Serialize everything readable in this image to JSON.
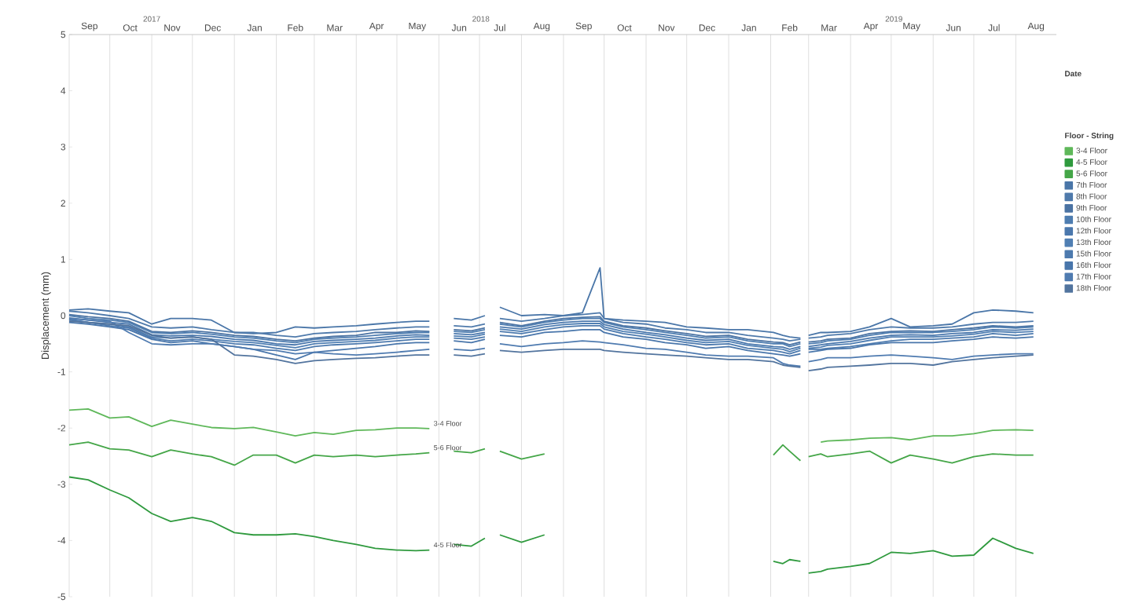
{
  "chart_data": {
    "type": "line",
    "ylabel": "Displacement (mm)",
    "legend_title": "Floor - String",
    "annotations": [
      "Date",
      "3-4 Floor",
      "4-5 Floor",
      "5-6 Floor"
    ],
    "x": [
      "2017-09-01",
      "2017-09-15",
      "2017-10-01",
      "2017-10-15",
      "2017-11-01",
      "2017-11-15",
      "2017-12-01",
      "2017-12-15",
      "2018-01-01",
      "2018-01-15",
      "2018-02-01",
      "2018-02-15",
      "2018-03-01",
      "2018-03-15",
      "2018-04-01",
      "2018-04-15",
      "2018-05-01",
      "2018-05-15",
      "2018-05-25",
      "2018-06-01",
      "2018-06-12",
      "2018-06-25",
      "2018-07-05",
      "2018-07-10",
      "2018-07-16",
      "2018-08-01",
      "2018-08-18",
      "2018-09-01",
      "2018-09-15",
      "2018-09-28",
      "2018-10-01",
      "2018-10-15",
      "2018-11-01",
      "2018-11-15",
      "2018-12-01",
      "2018-12-15",
      "2019-01-01",
      "2019-01-15",
      "2019-02-03",
      "2019-02-10",
      "2019-02-15",
      "2019-02-23",
      "2019-02-26",
      "2019-03-01",
      "2019-03-10",
      "2019-03-15",
      "2019-04-01",
      "2019-04-15",
      "2019-05-01",
      "2019-05-15",
      "2019-06-01",
      "2019-06-15",
      "2019-07-01",
      "2019-07-15",
      "2019-08-01",
      "2019-08-14"
    ],
    "series": [
      {
        "name": "3-4 Floor",
        "color": "#5fb85a",
        "values": [
          -1.68,
          -1.66,
          -1.82,
          -1.8,
          -1.97,
          -1.86,
          -1.93,
          -1.99,
          -2.01,
          -1.99,
          -2.07,
          -2.14,
          -2.08,
          -2.11,
          -2.04,
          -2.03,
          -2.0,
          -2.0,
          -2.01,
          null,
          null,
          null,
          null,
          null,
          null,
          null,
          null,
          null,
          null,
          null,
          null,
          null,
          null,
          null,
          null,
          null,
          null,
          null,
          null,
          null,
          null,
          null,
          null,
          null,
          -2.25,
          -2.23,
          -2.21,
          -2.18,
          -2.17,
          -2.21,
          -2.14,
          -2.14,
          -2.1,
          -2.04,
          -2.03,
          -2.04
        ]
      },
      {
        "name": "4-5 Floor",
        "color": "#2f9a3e",
        "values": [
          -2.87,
          -2.92,
          -3.1,
          -3.24,
          -3.52,
          -3.66,
          -3.59,
          -3.66,
          -3.86,
          -3.9,
          -3.9,
          -3.88,
          -3.93,
          -4.0,
          -4.07,
          -4.14,
          -4.17,
          -4.18,
          -4.17,
          null,
          -4.07,
          -4.1,
          -3.96,
          null,
          -3.9,
          -4.03,
          -3.9,
          null,
          null,
          null,
          null,
          null,
          null,
          null,
          null,
          null,
          null,
          null,
          -4.37,
          -4.41,
          -4.34,
          -4.37,
          null,
          -4.58,
          -4.55,
          -4.51,
          -4.46,
          -4.41,
          -4.21,
          -4.23,
          -4.18,
          -4.28,
          -4.26,
          -3.96,
          -4.14,
          -4.23
        ]
      },
      {
        "name": "5-6 Floor",
        "color": "#45a648",
        "values": [
          -2.3,
          -2.25,
          -2.37,
          -2.39,
          -2.51,
          -2.39,
          -2.46,
          -2.51,
          -2.66,
          -2.48,
          -2.48,
          -2.62,
          -2.48,
          -2.51,
          -2.48,
          -2.51,
          -2.48,
          -2.46,
          -2.44,
          null,
          -2.41,
          -2.44,
          -2.37,
          null,
          -2.41,
          -2.55,
          -2.46,
          null,
          null,
          null,
          null,
          null,
          null,
          null,
          null,
          null,
          null,
          null,
          -2.48,
          -2.3,
          -2.41,
          -2.58,
          null,
          -2.51,
          -2.46,
          -2.51,
          -2.46,
          -2.41,
          -2.62,
          -2.48,
          -2.55,
          -2.62,
          -2.51,
          -2.46,
          -2.48,
          -2.48
        ]
      },
      {
        "name": "7th Floor",
        "color": "#4a76a8",
        "values": [
          0.1,
          0.12,
          0.08,
          0.05,
          -0.15,
          -0.05,
          -0.05,
          -0.08,
          -0.3,
          -0.32,
          -0.3,
          -0.2,
          -0.22,
          -0.2,
          -0.18,
          -0.15,
          -0.12,
          -0.1,
          -0.1,
          null,
          -0.05,
          -0.08,
          0.0,
          null,
          0.15,
          0.0,
          0.02,
          0.0,
          0.05,
          0.85,
          -0.05,
          -0.08,
          -0.1,
          -0.12,
          -0.2,
          -0.22,
          -0.25,
          -0.25,
          -0.3,
          -0.35,
          -0.38,
          -0.4,
          null,
          -0.35,
          -0.3,
          -0.3,
          -0.28,
          -0.2,
          -0.05,
          -0.2,
          -0.18,
          -0.15,
          0.05,
          0.1,
          0.08,
          0.05
        ]
      },
      {
        "name": "8th Floor",
        "color": "#4f7aab",
        "values": [
          0.08,
          0.05,
          0.0,
          -0.05,
          -0.2,
          -0.22,
          -0.2,
          -0.25,
          -0.3,
          -0.3,
          -0.35,
          -0.38,
          -0.32,
          -0.3,
          -0.28,
          -0.25,
          -0.22,
          -0.2,
          -0.2,
          null,
          -0.18,
          -0.2,
          -0.15,
          null,
          -0.05,
          -0.1,
          -0.05,
          0.0,
          0.02,
          0.05,
          -0.05,
          -0.12,
          -0.15,
          -0.22,
          -0.25,
          -0.3,
          -0.3,
          -0.35,
          -0.4,
          -0.42,
          -0.45,
          -0.42,
          null,
          -0.4,
          -0.38,
          -0.35,
          -0.32,
          -0.25,
          -0.2,
          -0.22,
          -0.22,
          -0.2,
          -0.15,
          -0.12,
          -0.12,
          -0.1
        ]
      },
      {
        "name": "9th Floor",
        "color": "#4b73a3",
        "values": [
          0.02,
          -0.02,
          -0.05,
          -0.1,
          -0.28,
          -0.3,
          -0.27,
          -0.3,
          -0.35,
          -0.37,
          -0.42,
          -0.45,
          -0.4,
          -0.37,
          -0.35,
          -0.3,
          -0.3,
          -0.27,
          -0.28,
          null,
          -0.25,
          -0.27,
          -0.22,
          null,
          -0.12,
          -0.18,
          -0.1,
          -0.05,
          -0.03,
          -0.02,
          -0.1,
          -0.18,
          -0.22,
          -0.27,
          -0.32,
          -0.37,
          -0.35,
          -0.42,
          -0.47,
          -0.48,
          -0.52,
          -0.47,
          null,
          -0.47,
          -0.45,
          -0.42,
          -0.4,
          -0.32,
          -0.28,
          -0.27,
          -0.28,
          -0.25,
          -0.22,
          -0.18,
          -0.2,
          -0.18
        ]
      },
      {
        "name": "10th Floor",
        "color": "#4e7db0",
        "values": [
          0.0,
          -0.05,
          -0.08,
          -0.12,
          -0.3,
          -0.32,
          -0.3,
          -0.33,
          -0.38,
          -0.4,
          -0.45,
          -0.48,
          -0.42,
          -0.4,
          -0.38,
          -0.35,
          -0.32,
          -0.3,
          -0.3,
          null,
          -0.28,
          -0.3,
          -0.25,
          null,
          -0.15,
          -0.2,
          -0.12,
          -0.08,
          -0.05,
          -0.05,
          -0.12,
          -0.2,
          -0.25,
          -0.3,
          -0.35,
          -0.4,
          -0.38,
          -0.45,
          -0.5,
          -0.5,
          -0.55,
          -0.5,
          null,
          -0.5,
          -0.48,
          -0.45,
          -0.42,
          -0.35,
          -0.3,
          -0.3,
          -0.3,
          -0.28,
          -0.25,
          -0.2,
          -0.22,
          -0.2
        ]
      },
      {
        "name": "12th Floor",
        "color": "#4b78ad",
        "values": [
          -0.04,
          -0.08,
          -0.12,
          -0.15,
          -0.34,
          -0.36,
          -0.35,
          -0.37,
          -0.42,
          -0.44,
          -0.5,
          -0.52,
          -0.46,
          -0.44,
          -0.42,
          -0.4,
          -0.36,
          -0.34,
          -0.35,
          null,
          -0.32,
          -0.34,
          -0.3,
          null,
          -0.2,
          -0.24,
          -0.16,
          -0.12,
          -0.1,
          -0.1,
          -0.16,
          -0.24,
          -0.3,
          -0.34,
          -0.4,
          -0.44,
          -0.42,
          -0.5,
          -0.55,
          -0.56,
          -0.6,
          -0.55,
          null,
          -0.55,
          -0.52,
          -0.5,
          -0.46,
          -0.4,
          -0.35,
          -0.34,
          -0.35,
          -0.32,
          -0.3,
          -0.25,
          -0.26,
          -0.24
        ]
      },
      {
        "name": "13th Floor",
        "color": "#507fb3",
        "values": [
          -0.06,
          -0.12,
          -0.15,
          -0.2,
          -0.38,
          -0.4,
          -0.38,
          -0.42,
          -0.46,
          -0.48,
          -0.53,
          -0.57,
          -0.5,
          -0.48,
          -0.46,
          -0.44,
          -0.4,
          -0.38,
          -0.38,
          null,
          -0.36,
          -0.38,
          -0.33,
          null,
          -0.24,
          -0.28,
          -0.2,
          -0.16,
          -0.14,
          -0.14,
          -0.2,
          -0.28,
          -0.33,
          -0.38,
          -0.44,
          -0.48,
          -0.46,
          -0.53,
          -0.58,
          -0.6,
          -0.64,
          -0.58,
          null,
          -0.58,
          -0.56,
          -0.53,
          -0.5,
          -0.44,
          -0.38,
          -0.38,
          -0.38,
          -0.36,
          -0.33,
          -0.28,
          -0.3,
          -0.28
        ]
      },
      {
        "name": "15th Floor",
        "color": "#4d7aae",
        "values": [
          -0.08,
          -0.12,
          -0.18,
          -0.22,
          -0.4,
          -0.45,
          -0.42,
          -0.45,
          -0.5,
          -0.52,
          -0.58,
          -0.62,
          -0.55,
          -0.52,
          -0.5,
          -0.48,
          -0.45,
          -0.42,
          -0.42,
          null,
          -0.4,
          -0.42,
          -0.38,
          null,
          -0.28,
          -0.32,
          -0.25,
          -0.2,
          -0.18,
          -0.18,
          -0.24,
          -0.32,
          -0.38,
          -0.42,
          -0.48,
          -0.52,
          -0.5,
          -0.58,
          -0.62,
          -0.65,
          -0.68,
          -0.62,
          null,
          -0.6,
          -0.6,
          -0.58,
          -0.55,
          -0.5,
          -0.45,
          -0.42,
          -0.42,
          -0.4,
          -0.38,
          -0.32,
          -0.35,
          -0.32
        ]
      },
      {
        "name": "16th Floor",
        "color": "#4976ab",
        "values": [
          -0.12,
          -0.15,
          -0.2,
          -0.25,
          -0.42,
          -0.48,
          -0.45,
          -0.5,
          -0.55,
          -0.6,
          -0.7,
          -0.78,
          -0.65,
          -0.62,
          -0.58,
          -0.55,
          -0.5,
          -0.48,
          -0.48,
          null,
          -0.45,
          -0.48,
          -0.42,
          null,
          -0.35,
          -0.38,
          -0.3,
          -0.28,
          -0.25,
          -0.25,
          -0.3,
          -0.38,
          -0.42,
          -0.48,
          -0.52,
          -0.58,
          -0.55,
          -0.62,
          -0.68,
          -0.7,
          -0.72,
          -0.68,
          null,
          -0.65,
          -0.62,
          -0.6,
          -0.58,
          -0.52,
          -0.48,
          -0.48,
          -0.48,
          -0.45,
          -0.42,
          -0.38,
          -0.4,
          -0.38
        ]
      },
      {
        "name": "17th Floor",
        "color": "#4f7bb0",
        "values": [
          -0.05,
          -0.08,
          -0.1,
          -0.3,
          -0.5,
          -0.52,
          -0.5,
          -0.5,
          -0.55,
          -0.6,
          -0.62,
          -0.68,
          -0.65,
          -0.68,
          -0.7,
          -0.68,
          -0.65,
          -0.62,
          -0.6,
          null,
          -0.6,
          -0.62,
          -0.58,
          null,
          -0.5,
          -0.55,
          -0.5,
          -0.48,
          -0.45,
          -0.47,
          -0.48,
          -0.52,
          -0.58,
          -0.6,
          -0.65,
          -0.7,
          -0.72,
          -0.72,
          -0.75,
          -0.85,
          -0.88,
          -0.9,
          null,
          -0.82,
          -0.78,
          -0.75,
          -0.75,
          -0.72,
          -0.7,
          -0.72,
          -0.75,
          -0.78,
          -0.72,
          -0.7,
          -0.68,
          -0.68
        ]
      },
      {
        "name": "18th Floor",
        "color": "#52749e",
        "values": [
          -0.1,
          -0.12,
          -0.15,
          -0.18,
          -0.35,
          -0.4,
          -0.38,
          -0.42,
          -0.7,
          -0.72,
          -0.78,
          -0.85,
          -0.8,
          -0.78,
          -0.76,
          -0.75,
          -0.72,
          -0.7,
          -0.7,
          null,
          -0.7,
          -0.72,
          -0.68,
          null,
          -0.62,
          -0.65,
          -0.62,
          -0.6,
          -0.6,
          -0.6,
          -0.62,
          -0.65,
          -0.68,
          -0.7,
          -0.72,
          -0.75,
          -0.78,
          -0.78,
          -0.82,
          -0.88,
          -0.9,
          -0.92,
          null,
          -0.98,
          -0.95,
          -0.92,
          -0.9,
          -0.88,
          -0.85,
          -0.85,
          -0.88,
          -0.82,
          -0.78,
          -0.75,
          -0.72,
          -0.7
        ]
      }
    ],
    "xlim": [
      "2017-09-01",
      "2019-08-31"
    ],
    "xticks": [
      {
        "value": "2017-09-16",
        "label": "Sep"
      },
      {
        "value": "2017-10-16",
        "label": "Oct"
      },
      {
        "value": "2017-11-16",
        "label": "Nov"
      },
      {
        "value": "2017-12-16",
        "label": "Dec"
      },
      {
        "value": "2018-01-16",
        "label": "Jan"
      },
      {
        "value": "2018-02-15",
        "label": "Feb"
      },
      {
        "value": "2018-03-16",
        "label": "Mar"
      },
      {
        "value": "2018-04-16",
        "label": "Apr"
      },
      {
        "value": "2018-05-16",
        "label": "May"
      },
      {
        "value": "2018-06-16",
        "label": "Jun"
      },
      {
        "value": "2018-07-16",
        "label": "Jul"
      },
      {
        "value": "2018-08-16",
        "label": "Aug"
      },
      {
        "value": "2018-09-16",
        "label": "Sep"
      },
      {
        "value": "2018-10-16",
        "label": "Oct"
      },
      {
        "value": "2018-11-16",
        "label": "Nov"
      },
      {
        "value": "2018-12-16",
        "label": "Dec"
      },
      {
        "value": "2019-01-16",
        "label": "Jan"
      },
      {
        "value": "2019-02-15",
        "label": "Feb"
      },
      {
        "value": "2019-03-16",
        "label": "Mar"
      },
      {
        "value": "2019-04-16",
        "label": "Apr"
      },
      {
        "value": "2019-05-16",
        "label": "May"
      },
      {
        "value": "2019-06-16",
        "label": "Jun"
      },
      {
        "value": "2019-07-16",
        "label": "Jul"
      },
      {
        "value": "2019-08-16",
        "label": "Aug"
      }
    ],
    "x2lim": [
      "2017-09-01",
      "2019-08-31"
    ],
    "x2ticks": [
      {
        "value": "2017-11-01",
        "label": "2017"
      },
      {
        "value": "2018-07-02",
        "label": "2018"
      },
      {
        "value": "2019-05-03",
        "label": "2019"
      }
    ],
    "ylim": [
      -5,
      5
    ],
    "yticks": [
      -5,
      -4,
      -3,
      -2,
      -1,
      0,
      1,
      2,
      3,
      4,
      5
    ],
    "grid": "x",
    "legend": "right"
  }
}
